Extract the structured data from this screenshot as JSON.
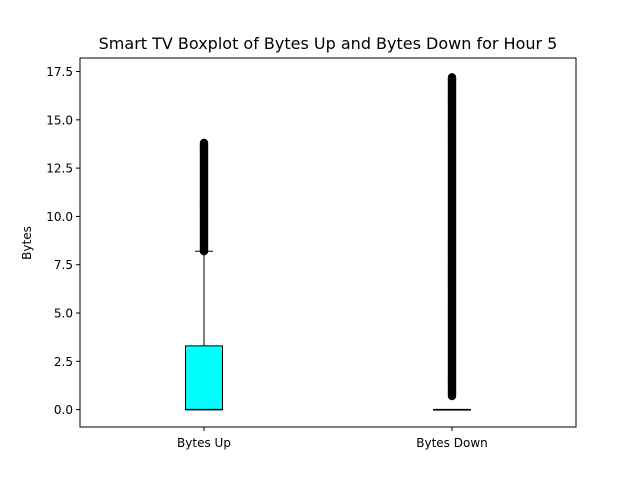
{
  "chart_data": {
    "type": "box",
    "title": "Smart TV Boxplot of Bytes Up and Bytes Down for Hour 5",
    "xlabel": "",
    "ylabel": "Bytes",
    "ylim": [
      -0.9,
      18.2
    ],
    "yticks": [
      0.0,
      2.5,
      5.0,
      7.5,
      10.0,
      12.5,
      15.0,
      17.5
    ],
    "ytick_labels": [
      "0.0",
      "2.5",
      "5.0",
      "7.5",
      "10.0",
      "12.5",
      "15.0",
      "17.5"
    ],
    "categories": [
      "Bytes Up",
      "Bytes Down"
    ],
    "grid": false,
    "box_color": "#00ffff",
    "series": [
      {
        "category": "Bytes Up",
        "whisker_low": 0.0,
        "q1": 0.0,
        "median": 0.0,
        "q3": 3.3,
        "whisker_high": 8.2,
        "outliers_range": [
          8.2,
          13.8
        ]
      },
      {
        "category": "Bytes Down",
        "whisker_low": 0.0,
        "q1": 0.0,
        "median": 0.0,
        "q3": 0.0,
        "whisker_high": 0.0,
        "outliers_range": [
          0.7,
          17.2
        ]
      }
    ]
  }
}
